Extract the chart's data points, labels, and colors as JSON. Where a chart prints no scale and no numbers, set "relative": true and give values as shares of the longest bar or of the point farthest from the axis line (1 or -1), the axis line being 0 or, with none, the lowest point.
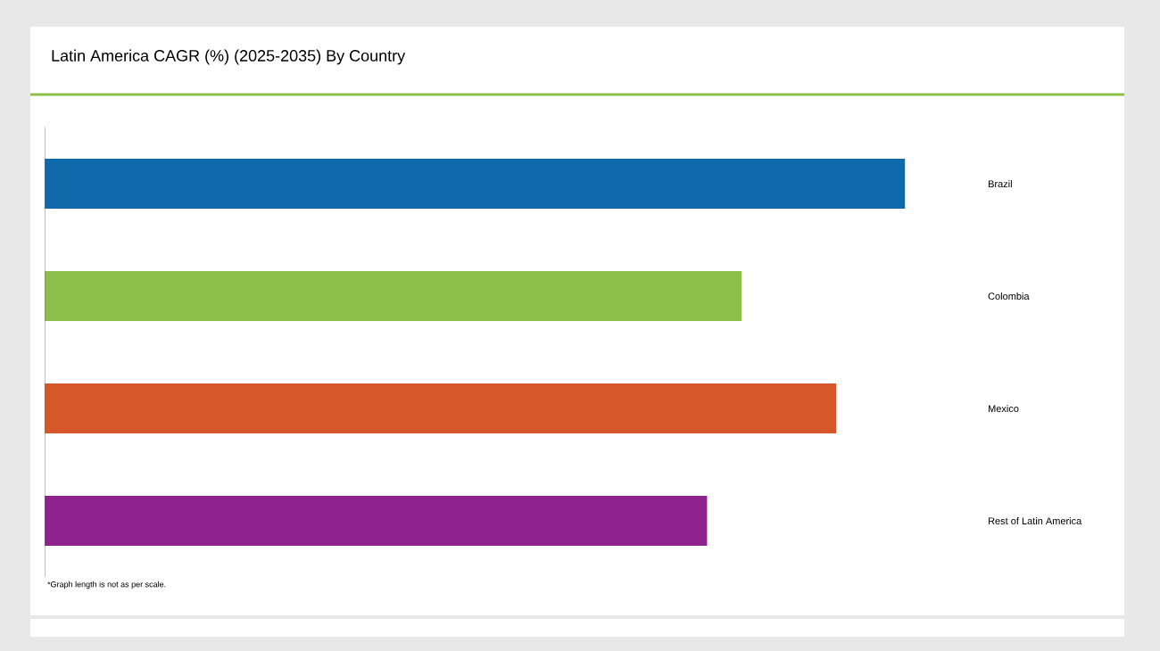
{
  "chart_data": {
    "type": "bar",
    "orientation": "horizontal",
    "relative": true,
    "title": "Latin America CAGR (%) (2025-2035) By Country",
    "categories": [
      "Brazil",
      "Colombia",
      "Mexico",
      "Rest of Latin America"
    ],
    "values": [
      1,
      0.81,
      0.92,
      0.77
    ],
    "colors": [
      "#0f6aab",
      "#8dc04a",
      "#d6572a",
      "#8e238e"
    ],
    "annotations": [
      "*Graph length is not as per scale."
    ]
  }
}
